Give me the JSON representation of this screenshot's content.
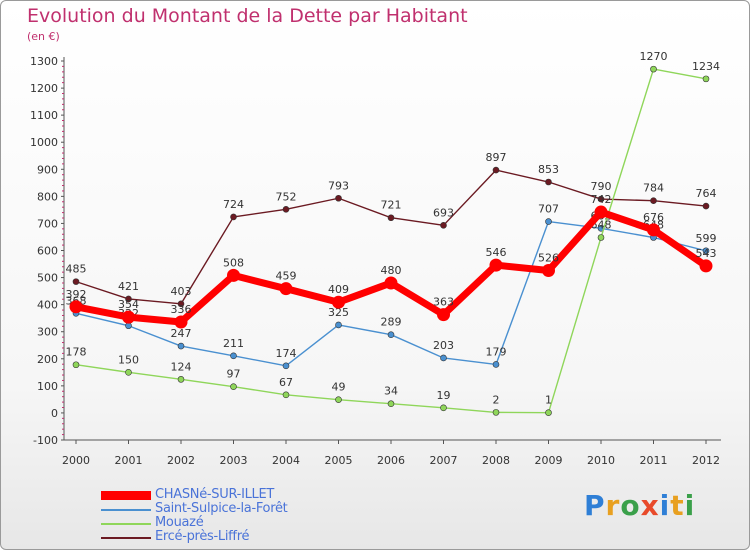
{
  "title": "Evolution du Montant de la Dette par Habitant",
  "subtitle": "(en €)",
  "logo_text": "Proxiti",
  "chart_data": {
    "type": "line",
    "title": "Evolution du Montant de la Dette par Habitant",
    "subtitle": "(en €)",
    "xlabel": "",
    "ylabel": "",
    "x": [
      "2000",
      "2001",
      "2002",
      "2003",
      "2004",
      "2005",
      "2006",
      "2007",
      "2008",
      "2009",
      "2010",
      "2011",
      "2012"
    ],
    "ylim": [
      -100,
      1300
    ],
    "yticks": [
      "-100",
      "0",
      "100",
      "200",
      "300",
      "400",
      "500",
      "600",
      "700",
      "800",
      "900",
      "1000",
      "1100",
      "1200",
      "1300"
    ],
    "grid": false,
    "legend_position": "bottom-left",
    "series": [
      {
        "name": "Ercé-près-Liffré",
        "color": "#6b1a22",
        "values": [
          485,
          421,
          403,
          724,
          752,
          793,
          721,
          693,
          897,
          853,
          790,
          784,
          764
        ]
      },
      {
        "name": "Saint-Sulpice-la-Forêt",
        "color": "#4a90d0",
        "values": [
          368,
          322,
          247,
          211,
          174,
          325,
          289,
          203,
          179,
          707,
          682,
          648,
          599
        ]
      },
      {
        "name": "Mouazé",
        "color": "#8fd65a",
        "values": [
          178,
          150,
          124,
          97,
          67,
          49,
          34,
          19,
          2,
          1,
          648,
          1270,
          1234
        ]
      },
      {
        "name": "CHASNé-SUR-ILLET",
        "color": "#ff0000",
        "values": [
          392,
          354,
          336,
          508,
          459,
          409,
          480,
          363,
          546,
          526,
          742,
          676,
          543
        ]
      }
    ],
    "legend": [
      {
        "name": "CHASNé-SUR-ILLET",
        "color": "#ff0000",
        "text_color": "#4a73d8",
        "thick": true
      },
      {
        "name": "Saint-Sulpice-la-Forêt",
        "color": "#4a90d0",
        "text_color": "#4a73d8",
        "thick": false
      },
      {
        "name": "Mouazé",
        "color": "#8fd65a",
        "text_color": "#4a73d8",
        "thick": false
      },
      {
        "name": "Ercé-près-Liffré",
        "color": "#6b1a22",
        "text_color": "#4a73d8",
        "thick": false
      }
    ]
  }
}
